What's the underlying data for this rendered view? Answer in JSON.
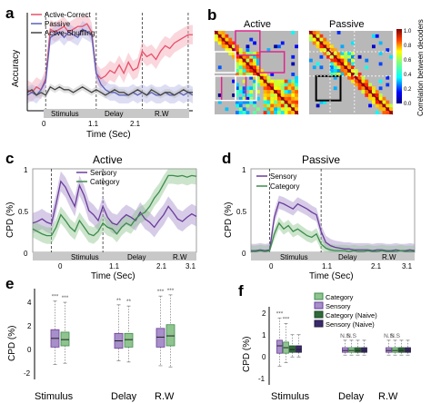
{
  "panel_letters": [
    "a",
    "b",
    "c",
    "d",
    "e",
    "f"
  ],
  "panel_a": {
    "ylabel": "Accuracy",
    "xlabel": "Time (Sec)",
    "ticks": [
      "0",
      "1.1",
      "2.1"
    ],
    "epochs": [
      "Stimulus",
      "Delay",
      "R.W"
    ],
    "legend": [
      "Active-Correct",
      "Passive",
      "Active-Shuffling"
    ],
    "colors": [
      "#e8506a",
      "#5a5fb8",
      "#444444"
    ]
  },
  "panel_b": {
    "titles": [
      "Active",
      "Passive"
    ],
    "colorbar_label": "Correlation between decoders",
    "colorbar_ticks": [
      "1.0",
      "0.8",
      "0.6",
      "0.4",
      "0.2",
      "0.0"
    ]
  },
  "panel_c": {
    "title": "Active",
    "ylabel": "CPD (%)",
    "xlabel": "Time (Sec)",
    "yticks": [
      "1",
      "0.5",
      "0"
    ],
    "xticks": [
      "0",
      "1.1",
      "2.1",
      "3.1"
    ],
    "epochs": [
      "Stimulus",
      "Delay",
      "R.W"
    ],
    "legend": [
      "Sensory",
      "Category"
    ]
  },
  "panel_d": {
    "title": "Passive",
    "ylabel": "CPD (%)",
    "xlabel": "Time (Sec)",
    "yticks": [
      "1",
      "0.5",
      "0"
    ],
    "xticks": [
      "0",
      "1.1",
      "2.1",
      "3.1"
    ],
    "epochs": [
      "Stimulus",
      "Delay",
      "R.W"
    ],
    "legend": [
      "Sensory",
      "Category"
    ]
  },
  "panel_e": {
    "ylabel": "CPD (%)",
    "yticks": [
      "4",
      "2",
      "0",
      "-2"
    ],
    "categories": [
      "Stimulus",
      "Delay",
      "R.W"
    ],
    "signif": [
      "***",
      "***",
      "**",
      "**",
      "***",
      "***"
    ]
  },
  "panel_f": {
    "ylabel": "CPD (%)",
    "yticks": [
      "2",
      "1",
      "0",
      "-1"
    ],
    "categories": [
      "Stimulus",
      "Delay",
      "R.W"
    ],
    "legend": [
      "Category",
      "Sensory",
      "Category (Naive)",
      "Sensory (Naive)"
    ],
    "signif": [
      "***",
      "***",
      "N.S",
      "N.S",
      "N.S",
      "N.S",
      "N.S",
      "N.S"
    ]
  },
  "colors": {
    "sensory": "#6a3c9a",
    "category": "#3c8c4c",
    "sensory_light": "#a78fc9",
    "category_light": "#8fc48f"
  },
  "chart_data": [
    {
      "panel": "a",
      "type": "line",
      "x": [
        -0.4,
        -0.3,
        -0.2,
        -0.1,
        0.0,
        0.1,
        0.2,
        0.3,
        0.4,
        0.5,
        0.6,
        0.7,
        0.8,
        0.9,
        1.0,
        1.1,
        1.2,
        1.3,
        1.4,
        1.5,
        1.6,
        1.7,
        1.8,
        1.9,
        2.0,
        2.1,
        2.2,
        2.3,
        2.4,
        2.5,
        2.6,
        2.7,
        2.8,
        2.9,
        3.0,
        3.1,
        3.2
      ],
      "series": [
        {
          "name": "Active-Correct",
          "values": [
            0.52,
            0.51,
            0.53,
            0.52,
            0.56,
            0.74,
            0.73,
            0.74,
            0.75,
            0.73,
            0.74,
            0.75,
            0.75,
            0.76,
            0.73,
            0.58,
            0.56,
            0.57,
            0.59,
            0.58,
            0.61,
            0.58,
            0.62,
            0.59,
            0.6,
            0.66,
            0.64,
            0.65,
            0.63,
            0.66,
            0.68,
            0.67,
            0.69,
            0.7,
            0.71,
            0.72,
            0.72
          ]
        },
        {
          "name": "Passive",
          "values": [
            0.5,
            0.51,
            0.5,
            0.52,
            0.55,
            0.71,
            0.72,
            0.73,
            0.71,
            0.73,
            0.72,
            0.71,
            0.74,
            0.73,
            0.72,
            0.58,
            0.54,
            0.52,
            0.51,
            0.51,
            0.5,
            0.5,
            0.5,
            0.51,
            0.5,
            0.51,
            0.5,
            0.51,
            0.5,
            0.5,
            0.51,
            0.5,
            0.5,
            0.51,
            0.5,
            0.51,
            0.5
          ]
        },
        {
          "name": "Active-Shuffling",
          "values": [
            0.51,
            0.52,
            0.5,
            0.51,
            0.5,
            0.53,
            0.52,
            0.53,
            0.52,
            0.52,
            0.51,
            0.52,
            0.53,
            0.52,
            0.51,
            0.52,
            0.51,
            0.5,
            0.51,
            0.52,
            0.51,
            0.51,
            0.5,
            0.51,
            0.52,
            0.51,
            0.5,
            0.52,
            0.51,
            0.5,
            0.51,
            0.51,
            0.5,
            0.51,
            0.52,
            0.51,
            0.51
          ]
        }
      ],
      "ylim": [
        0.45,
        0.8
      ],
      "xlim": [
        -0.4,
        3.2
      ]
    },
    {
      "panel": "c",
      "type": "line",
      "x": [
        -0.4,
        -0.3,
        -0.2,
        -0.1,
        0.0,
        0.1,
        0.2,
        0.3,
        0.4,
        0.5,
        0.6,
        0.7,
        0.8,
        0.9,
        1.0,
        1.1,
        1.2,
        1.3,
        1.4,
        1.5,
        1.6,
        1.7,
        1.8,
        1.9,
        2.0,
        2.1,
        2.2,
        2.3,
        2.4,
        2.5,
        2.6,
        2.7,
        2.8,
        2.9,
        3.0,
        3.1
      ],
      "series": [
        {
          "name": "Sensory",
          "values": [
            0.35,
            0.37,
            0.4,
            0.36,
            0.34,
            0.58,
            0.85,
            0.78,
            0.66,
            0.55,
            0.8,
            0.68,
            0.5,
            0.45,
            0.38,
            0.55,
            0.42,
            0.35,
            0.33,
            0.4,
            0.45,
            0.42,
            0.38,
            0.48,
            0.4,
            0.36,
            0.3,
            0.38,
            0.45,
            0.55,
            0.48,
            0.4,
            0.37,
            0.42,
            0.46,
            0.43
          ]
        },
        {
          "name": "Category",
          "values": [
            0.28,
            0.25,
            0.22,
            0.2,
            0.2,
            0.3,
            0.45,
            0.38,
            0.3,
            0.25,
            0.38,
            0.3,
            0.22,
            0.2,
            0.25,
            0.35,
            0.3,
            0.28,
            0.22,
            0.3,
            0.35,
            0.32,
            0.4,
            0.45,
            0.48,
            0.55,
            0.65,
            0.72,
            0.82,
            0.92,
            0.92,
            0.91,
            0.92,
            0.9,
            0.92,
            0.91
          ]
        }
      ],
      "ylim": [
        0,
        1
      ],
      "xlim": [
        -0.4,
        3.1
      ]
    },
    {
      "panel": "d",
      "type": "line",
      "x": [
        -0.4,
        -0.3,
        -0.2,
        -0.1,
        0.0,
        0.1,
        0.2,
        0.3,
        0.4,
        0.5,
        0.6,
        0.7,
        0.8,
        0.9,
        1.0,
        1.1,
        1.2,
        1.3,
        1.4,
        1.5,
        1.6,
        1.7,
        1.8,
        1.9,
        2.0,
        2.1,
        2.2,
        2.3,
        2.4,
        2.5,
        2.6,
        2.7,
        2.8,
        2.9,
        3.0,
        3.1
      ],
      "series": [
        {
          "name": "Sensory",
          "values": [
            0.02,
            0.02,
            0.03,
            0.02,
            0.03,
            0.42,
            0.6,
            0.58,
            0.55,
            0.52,
            0.58,
            0.55,
            0.52,
            0.48,
            0.45,
            0.25,
            0.12,
            0.08,
            0.06,
            0.05,
            0.04,
            0.04,
            0.03,
            0.03,
            0.03,
            0.03,
            0.02,
            0.03,
            0.03,
            0.02,
            0.02,
            0.03,
            0.02,
            0.02,
            0.03,
            0.02
          ]
        },
        {
          "name": "Category",
          "values": [
            0.01,
            0.01,
            0.02,
            0.01,
            0.02,
            0.22,
            0.35,
            0.28,
            0.32,
            0.25,
            0.28,
            0.24,
            0.2,
            0.18,
            0.22,
            0.1,
            0.05,
            0.03,
            0.02,
            0.02,
            0.02,
            0.01,
            0.02,
            0.01,
            0.01,
            0.02,
            0.01,
            0.01,
            0.02,
            0.01,
            0.01,
            0.01,
            0.02,
            0.01,
            0.01,
            0.01
          ]
        }
      ],
      "ylim": [
        0,
        1
      ],
      "xlim": [
        -0.4,
        3.1
      ]
    },
    {
      "panel": "e",
      "type": "box",
      "categories": [
        "Stimulus",
        "Delay",
        "R.W"
      ],
      "series": [
        {
          "name": "Sensory",
          "values": [
            [
              -1.6,
              -0.2,
              0.5,
              1.2,
              3.5
            ],
            [
              -1.3,
              -0.3,
              0.3,
              0.9,
              3.2
            ],
            [
              -1.7,
              -0.2,
              0.6,
              1.3,
              3.9
            ]
          ]
        },
        {
          "name": "Category",
          "values": [
            [
              -1.5,
              -0.1,
              0.4,
              1.0,
              3.4
            ],
            [
              -1.4,
              -0.2,
              0.4,
              0.9,
              3.1
            ],
            [
              -1.8,
              -0.1,
              0.7,
              1.6,
              4.0
            ]
          ]
        }
      ],
      "ylim": [
        -2.8,
        4.5
      ]
    },
    {
      "panel": "f",
      "type": "box",
      "categories": [
        "Stimulus",
        "Delay",
        "R.W"
      ],
      "series": [
        {
          "name": "Sensory",
          "values": [
            [
              -0.8,
              -0.1,
              0.3,
              0.6,
              1.8
            ],
            [
              -0.2,
              -0.05,
              0.05,
              0.2,
              0.6
            ],
            [
              -0.2,
              -0.05,
              0.05,
              0.2,
              0.6
            ]
          ]
        },
        {
          "name": "Category",
          "values": [
            [
              -0.6,
              -0.1,
              0.2,
              0.5,
              1.5
            ],
            [
              -0.2,
              -0.05,
              0.05,
              0.2,
              0.6
            ],
            [
              -0.2,
              -0.05,
              0.05,
              0.2,
              0.6
            ]
          ]
        },
        {
          "name": "Category (Naive)",
          "values": [
            [
              -0.3,
              -0.05,
              0.1,
              0.3,
              0.9
            ],
            [
              -0.2,
              -0.05,
              0.05,
              0.2,
              0.6
            ],
            [
              -0.2,
              -0.05,
              0.05,
              0.2,
              0.6
            ]
          ]
        },
        {
          "name": "Sensory (Naive)",
          "values": [
            [
              -0.3,
              -0.05,
              0.1,
              0.3,
              0.9
            ],
            [
              -0.2,
              -0.05,
              0.05,
              0.2,
              0.6
            ],
            [
              -0.2,
              -0.05,
              0.05,
              0.2,
              0.6
            ]
          ]
        }
      ],
      "ylim": [
        -1.8,
        2.4
      ]
    }
  ]
}
